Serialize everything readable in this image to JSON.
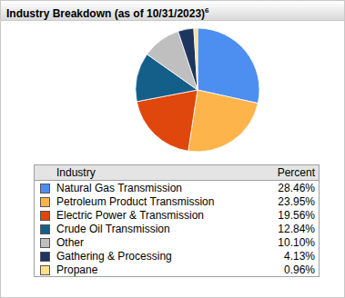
{
  "chart_data": {
    "type": "pie",
    "title": "Industry Breakdown (as of 10/31/2023)",
    "title_superscript": "6",
    "column_labels": [
      "Industry",
      "Percent"
    ],
    "categories": [
      "Natural Gas Transmission",
      "Petroleum Product Transmission",
      "Electric Power & Transmission",
      "Crude Oil Transmission",
      "Other",
      "Gathering & Processing",
      "Propane"
    ],
    "values": [
      28.46,
      23.95,
      19.56,
      12.84,
      10.1,
      4.13,
      0.96
    ],
    "value_labels": [
      "28.46%",
      "23.95%",
      "19.56%",
      "12.84%",
      "10.10%",
      "4.13%",
      "0.96%"
    ],
    "colors": [
      "#4c8ff0",
      "#fdb44b",
      "#e0470c",
      "#145e8a",
      "#bfbfbf",
      "#1e3560",
      "#ffe08a"
    ],
    "legend": "bottom",
    "data_labels": false
  }
}
